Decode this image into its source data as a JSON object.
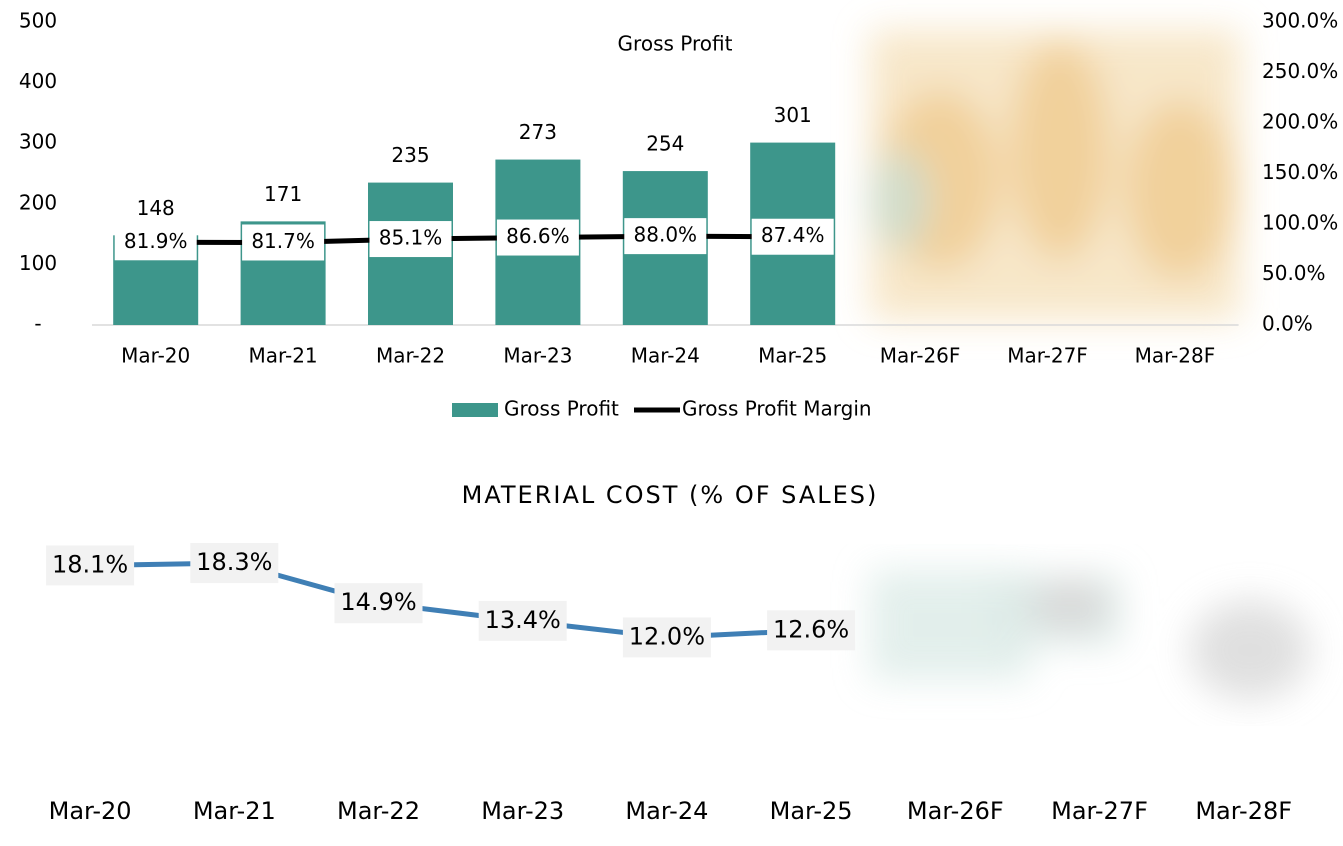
{
  "chart_data": [
    {
      "type": "bar",
      "title": "Gross Profit",
      "categories": [
        "Mar-20",
        "Mar-21",
        "Mar-22",
        "Mar-23",
        "Mar-24",
        "Mar-25",
        "Mar-26F",
        "Mar-27F",
        "Mar-28F"
      ],
      "series": [
        {
          "name": "Gross Profit",
          "type": "bar",
          "color": "#3d968b",
          "values": [
            148,
            171,
            235,
            273,
            254,
            301,
            null,
            null,
            null
          ]
        },
        {
          "name": "Gross Profit Margin",
          "type": "line",
          "axis": "y2",
          "color": "#000000",
          "values": [
            81.9,
            81.7,
            85.1,
            86.6,
            88.0,
            87.4,
            null,
            null,
            null
          ],
          "value_labels": [
            "81.9%",
            "81.7%",
            "85.1%",
            "86.6%",
            "88.0%",
            "87.4%",
            null,
            null,
            null
          ]
        }
      ],
      "ylim": [
        0,
        500
      ],
      "yticks": [
        {
          "value": 0,
          "label": "-"
        },
        100,
        200,
        300,
        400,
        500
      ],
      "y2lim": [
        0,
        300
      ],
      "y2ticks": [
        {
          "value": 0,
          "label": "0.0%"
        },
        {
          "value": 50,
          "label": "50.0%"
        },
        {
          "value": 100,
          "label": "100.0%"
        },
        {
          "value": 150,
          "label": "150.0%"
        },
        {
          "value": 200,
          "label": "200.0%"
        },
        {
          "value": 250,
          "label": "250.0%"
        },
        {
          "value": 300,
          "label": "300.0%"
        }
      ],
      "legend": "bottom"
    },
    {
      "type": "line",
      "title": "MATERIAL COST (% OF SALES)",
      "categories": [
        "Mar-20",
        "Mar-21",
        "Mar-22",
        "Mar-23",
        "Mar-24",
        "Mar-25",
        "Mar-26F",
        "Mar-27F",
        "Mar-28F"
      ],
      "color": "#3f7fb5",
      "values": [
        18.1,
        18.3,
        14.9,
        13.4,
        12.0,
        12.6,
        null,
        null,
        null
      ],
      "value_labels": [
        "18.1%",
        "18.3%",
        "14.9%",
        "13.4%",
        "12.0%",
        "12.6%",
        null,
        null,
        null
      ]
    }
  ]
}
